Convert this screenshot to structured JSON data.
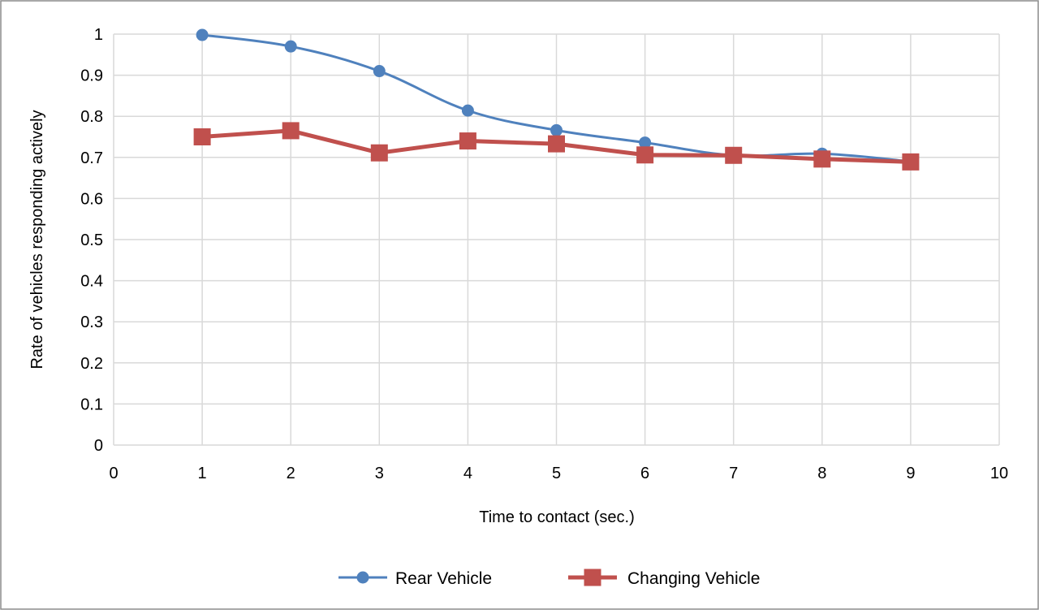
{
  "chart_data": {
    "type": "line",
    "title": "",
    "xlabel": "Time to contact (sec.)",
    "ylabel": "Rate of vehicles responding actively",
    "xlim": [
      0,
      10
    ],
    "ylim": [
      0,
      1
    ],
    "x_ticks": [
      "0",
      "1",
      "2",
      "3",
      "4",
      "5",
      "6",
      "7",
      "8",
      "9",
      "10"
    ],
    "y_ticks": [
      "0",
      "0.1",
      "0.2",
      "0.3",
      "0.4",
      "0.5",
      "0.6",
      "0.7",
      "0.8",
      "0.9",
      "1"
    ],
    "grid": true,
    "legend_position": "bottom",
    "x": [
      1,
      2,
      3,
      4,
      5,
      6,
      7,
      8,
      9
    ],
    "series": [
      {
        "name": "Rear Vehicle",
        "marker": "circle",
        "color": "#4f81bd",
        "values": [
          0.998,
          0.97,
          0.91,
          0.814,
          0.766,
          0.736,
          0.705,
          0.709,
          0.69
        ]
      },
      {
        "name": "Changing Vehicle",
        "marker": "square",
        "color": "#c0504d",
        "values": [
          0.75,
          0.765,
          0.711,
          0.74,
          0.733,
          0.706,
          0.705,
          0.696,
          0.689
        ]
      }
    ]
  }
}
